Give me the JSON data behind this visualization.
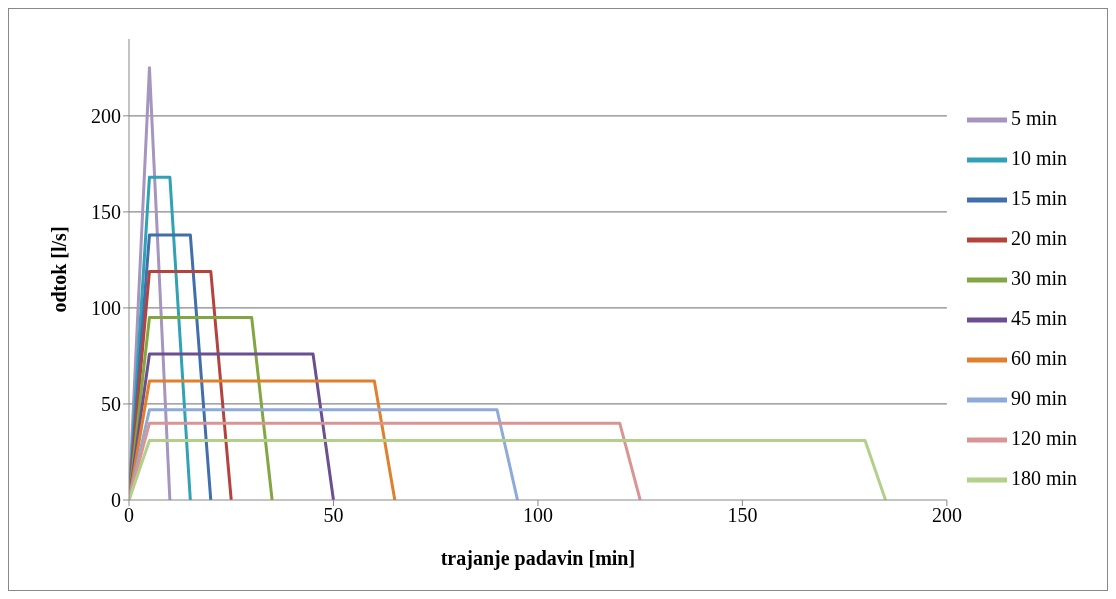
{
  "chart_data": {
    "type": "line",
    "xlabel": "trajanje padavin [min]",
    "ylabel": "odtok [l/s]",
    "xlim": [
      0,
      200
    ],
    "xticks": [
      0,
      50,
      100,
      150,
      200
    ],
    "ylim": [
      0,
      240
    ],
    "yticks": [
      0,
      50,
      100,
      150,
      200
    ],
    "grid": "y",
    "legend": "right",
    "marker": "none",
    "line_style": "solid",
    "series": [
      {
        "name": "5 min",
        "color": "#a595bf",
        "x": [
          0,
          5,
          10
        ],
        "values": [
          0,
          225,
          0
        ]
      },
      {
        "name": "10 min",
        "color": "#31a2b5",
        "x": [
          0,
          5,
          10,
          15
        ],
        "values": [
          0,
          168,
          168,
          0
        ]
      },
      {
        "name": "15 min",
        "color": "#3f6fad",
        "x": [
          0,
          5,
          15,
          20
        ],
        "values": [
          0,
          138,
          138,
          0
        ]
      },
      {
        "name": "20 min",
        "color": "#b5433d",
        "x": [
          0,
          5,
          20,
          25
        ],
        "values": [
          0,
          119,
          119,
          0
        ]
      },
      {
        "name": "30 min",
        "color": "#82a642",
        "x": [
          0,
          5,
          30,
          35
        ],
        "values": [
          0,
          95,
          95,
          0
        ]
      },
      {
        "name": "45 min",
        "color": "#6b4f91",
        "x": [
          0,
          5,
          45,
          50
        ],
        "values": [
          0,
          76,
          76,
          0
        ]
      },
      {
        "name": "60 min",
        "color": "#e07f2c",
        "x": [
          0,
          5,
          60,
          65
        ],
        "values": [
          0,
          62,
          62,
          0
        ]
      },
      {
        "name": "90 min",
        "color": "#8eaad6",
        "x": [
          0,
          5,
          90,
          95
        ],
        "values": [
          0,
          47,
          47,
          0
        ]
      },
      {
        "name": "120 min",
        "color": "#d99594",
        "x": [
          0,
          5,
          120,
          125
        ],
        "values": [
          0,
          40,
          40,
          0
        ]
      },
      {
        "name": "180 min",
        "color": "#b2d08a",
        "x": [
          0,
          5,
          180,
          185
        ],
        "values": [
          0,
          31,
          31,
          0
        ]
      }
    ]
  }
}
